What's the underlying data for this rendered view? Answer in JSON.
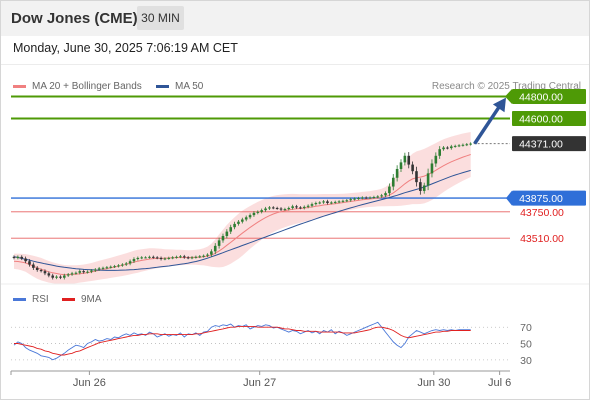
{
  "header": {
    "instrument": "Dow Jones (CME)",
    "timeframe": "30 MIN"
  },
  "datetime": "Monday, June 30, 2025 7:06:19 AM CET",
  "legend": {
    "ma20": {
      "label": "MA 20 + Bollinger Bands",
      "color": "#f08080"
    },
    "ma50": {
      "label": "MA 50",
      "color": "#2f5597"
    }
  },
  "credit": "Research © 2025 Trading Central",
  "colors": {
    "green": "#4e9a06",
    "blue": "#2f6fd8",
    "red": "#e02020",
    "up": "#2e7d32",
    "dark": "#333333",
    "band": "#f9d3d3"
  },
  "chart_data": [
    {
      "type": "candlestick",
      "title": "",
      "ylim": [
        43020,
        44950
      ],
      "x_ticks": [
        {
          "label": "Jun 26",
          "bar": 20
        },
        {
          "label": "Jun 27",
          "bar": 64
        },
        {
          "label": "Jun 30",
          "bar": 109
        },
        {
          "label": "Jul 6",
          "bar": 126
        }
      ],
      "last_price": 44371,
      "levels": [
        {
          "value": 44800,
          "label": "44800.00",
          "kind": "resistance-target"
        },
        {
          "value": 44600,
          "label": "44600.00",
          "kind": "resistance"
        },
        {
          "value": 44371,
          "label": "44371.00",
          "kind": "last"
        },
        {
          "value": 43875,
          "label": "43875.00",
          "kind": "pivot"
        },
        {
          "value": 43750,
          "label": "43750.00",
          "kind": "support"
        },
        {
          "value": 43510,
          "label": "43510.00",
          "kind": "support"
        }
      ],
      "arrow": {
        "from_price": 44371,
        "to_price": 44790
      },
      "closes": [
        43330,
        43340,
        43325,
        43300,
        43270,
        43240,
        43220,
        43210,
        43190,
        43170,
        43150,
        43160,
        43150,
        43170,
        43180,
        43190,
        43195,
        43210,
        43200,
        43205,
        43215,
        43225,
        43235,
        43240,
        43245,
        43250,
        43255,
        43262,
        43270,
        43280,
        43300,
        43320,
        43330,
        43335,
        43335,
        43340,
        43335,
        43330,
        43320,
        43325,
        43330,
        43335,
        43340,
        43345,
        43335,
        43330,
        43335,
        43340,
        43345,
        43350,
        43360,
        43390,
        43440,
        43490,
        43530,
        43570,
        43610,
        43640,
        43660,
        43680,
        43700,
        43720,
        43740,
        43750,
        43765,
        43780,
        43790,
        43785,
        43780,
        43770,
        43775,
        43785,
        43800,
        43790,
        43785,
        43795,
        43805,
        43820,
        43830,
        43835,
        43845,
        43830,
        43835,
        43840,
        43845,
        43850,
        43855,
        43865,
        43870,
        43875,
        43880,
        43878,
        43880,
        43885,
        43890,
        43900,
        43920,
        43980,
        44060,
        44140,
        44200,
        44260,
        44180,
        44120,
        44020,
        43940,
        43990,
        44100,
        44190,
        44260,
        44320,
        44335,
        44330,
        44345,
        44350,
        44355,
        44360,
        44365,
        44371
      ],
      "ma20": [
        43300,
        43298,
        43292,
        43285,
        43270,
        43255,
        43240,
        43228,
        43216,
        43204,
        43195,
        43188,
        43182,
        43178,
        43178,
        43180,
        43182,
        43186,
        43190,
        43196,
        43202,
        43210,
        43218,
        43225,
        43232,
        43240,
        43248,
        43256,
        43264,
        43272,
        43282,
        43292,
        43300,
        43308,
        43314,
        43320,
        43324,
        43326,
        43327,
        43328,
        43330,
        43332,
        43333,
        43334,
        43334,
        43334,
        43335,
        43336,
        43337,
        43340,
        43345,
        43355,
        43372,
        43394,
        43418,
        43445,
        43472,
        43500,
        43528,
        43555,
        43582,
        43608,
        43632,
        43655,
        43677,
        43697,
        43715,
        43730,
        43742,
        43752,
        43760,
        43767,
        43773,
        43777,
        43780,
        43784,
        43789,
        43794,
        43800,
        43806,
        43812,
        43816,
        43820,
        43824,
        43829,
        43834,
        43839,
        43844,
        43849,
        43854,
        43859,
        43863,
        43867,
        43871,
        43875,
        43880,
        43888,
        43902,
        43922,
        43948,
        43976,
        44005,
        44030,
        44050,
        44060,
        44066,
        44075,
        44090,
        44108,
        44128,
        44150,
        44170,
        44188,
        44205,
        44220,
        44234,
        44248,
        44260,
        44272
      ],
      "ma50": [
        43340,
        43335,
        43325,
        43318,
        43310,
        43300,
        43292,
        43285,
        43277,
        43270,
        43263,
        43256,
        43250,
        43245,
        43240,
        43236,
        43232,
        43229,
        43226,
        43224,
        43222,
        43220,
        43219,
        43218,
        43217,
        43217,
        43217,
        43218,
        43219,
        43220,
        43222,
        43224,
        43227,
        43230,
        43233,
        43237,
        43241,
        43245,
        43249,
        43253,
        43257,
        43262,
        43267,
        43272,
        43277,
        43283,
        43290,
        43298,
        43307,
        43317,
        43328,
        43340,
        43352,
        43365,
        43378,
        43391,
        43404,
        43417,
        43430,
        43443,
        43456,
        43469,
        43482,
        43495,
        43508,
        43521,
        43534,
        43547,
        43560,
        43573,
        43586,
        43599,
        43612,
        43625,
        43638,
        43650,
        43662,
        43674,
        43686,
        43698,
        43710,
        43721,
        43732,
        43743,
        43754,
        43765,
        43776,
        43786,
        43796,
        43806,
        43816,
        43825,
        43834,
        43843,
        43852,
        43861,
        43870,
        43880,
        43890,
        43900,
        43912,
        43924,
        43934,
        43944,
        43954,
        43964,
        43976,
        43990,
        44004,
        44018,
        44032,
        44046,
        44060,
        44073,
        44085,
        44096,
        44107,
        44117,
        44127
      ],
      "band_width": [
        70,
        72,
        75,
        80,
        88,
        95,
        100,
        102,
        100,
        98,
        95,
        92,
        90,
        88,
        86,
        84,
        82,
        80,
        80,
        80,
        82,
        84,
        86,
        88,
        90,
        92,
        94,
        96,
        98,
        100,
        102,
        104,
        104,
        102,
        100,
        98,
        95,
        90,
        86,
        82,
        78,
        75,
        72,
        70,
        68,
        66,
        66,
        68,
        72,
        78,
        88,
        105,
        125,
        150,
        170,
        185,
        195,
        200,
        205,
        205,
        200,
        195,
        190,
        185,
        180,
        175,
        170,
        165,
        160,
        155,
        150,
        145,
        140,
        135,
        130,
        125,
        120,
        115,
        110,
        105,
        100,
        96,
        92,
        88,
        84,
        80,
        78,
        76,
        74,
        72,
        72,
        72,
        72,
        74,
        76,
        80,
        88,
        100,
        120,
        145,
        170,
        195,
        215,
        230,
        240,
        245,
        248,
        250,
        250,
        248,
        245,
        240,
        235,
        230,
        225,
        220,
        215,
        210,
        205
      ]
    },
    {
      "type": "line",
      "title": "",
      "ylim": [
        20,
        85
      ],
      "y_ticks": [
        70,
        50,
        30
      ],
      "series": [
        {
          "name": "RSI",
          "color": "#4a78d8",
          "values": [
            48,
            52,
            50,
            45,
            42,
            40,
            38,
            35,
            34,
            33,
            30,
            32,
            35,
            38,
            42,
            45,
            48,
            47,
            45,
            50,
            52,
            55,
            53,
            54,
            56,
            55,
            58,
            57,
            60,
            62,
            60,
            63,
            61,
            62,
            60,
            64,
            62,
            58,
            60,
            62,
            59,
            61,
            60,
            63,
            58,
            62,
            61,
            63,
            60,
            64,
            65,
            70,
            72,
            71,
            73,
            72,
            74,
            70,
            72,
            71,
            73,
            68,
            70,
            72,
            71,
            73,
            72,
            69,
            70,
            68,
            66,
            64,
            66,
            65,
            62,
            64,
            66,
            63,
            65,
            62,
            66,
            64,
            67,
            62,
            65,
            63,
            60,
            62,
            64,
            66,
            68,
            70,
            72,
            74,
            76,
            70,
            64,
            58,
            52,
            48,
            45,
            50,
            58,
            62,
            66,
            64,
            62,
            64,
            66,
            67,
            66,
            67,
            66,
            67,
            66,
            67,
            67,
            67,
            67
          ]
        },
        {
          "name": "9MA",
          "color": "#e02020",
          "values": [
            50,
            50,
            49,
            48,
            47,
            46,
            44,
            43,
            41,
            40,
            38,
            37,
            36,
            36,
            37,
            38,
            40,
            41,
            43,
            45,
            47,
            49,
            51,
            52,
            53,
            54,
            55,
            56,
            57,
            58,
            59,
            60,
            60,
            61,
            61,
            62,
            62,
            62,
            61,
            61,
            61,
            61,
            61,
            61,
            61,
            61,
            61,
            62,
            62,
            63,
            64,
            65,
            66,
            67,
            68,
            69,
            70,
            70,
            71,
            71,
            71,
            71,
            71,
            70,
            70,
            70,
            70,
            70,
            70,
            69,
            68,
            68,
            67,
            66,
            66,
            65,
            65,
            65,
            65,
            64,
            64,
            64,
            64,
            64,
            64,
            63,
            63,
            63,
            63,
            64,
            65,
            66,
            67,
            69,
            70,
            70,
            69,
            68,
            66,
            63,
            60,
            58,
            57,
            58,
            59,
            60,
            61,
            62,
            63,
            64,
            64,
            65,
            65,
            66,
            66,
            66,
            66,
            66,
            66
          ]
        }
      ]
    }
  ],
  "rsi_legend": {
    "rsi": "RSI",
    "ma": "9MA"
  }
}
